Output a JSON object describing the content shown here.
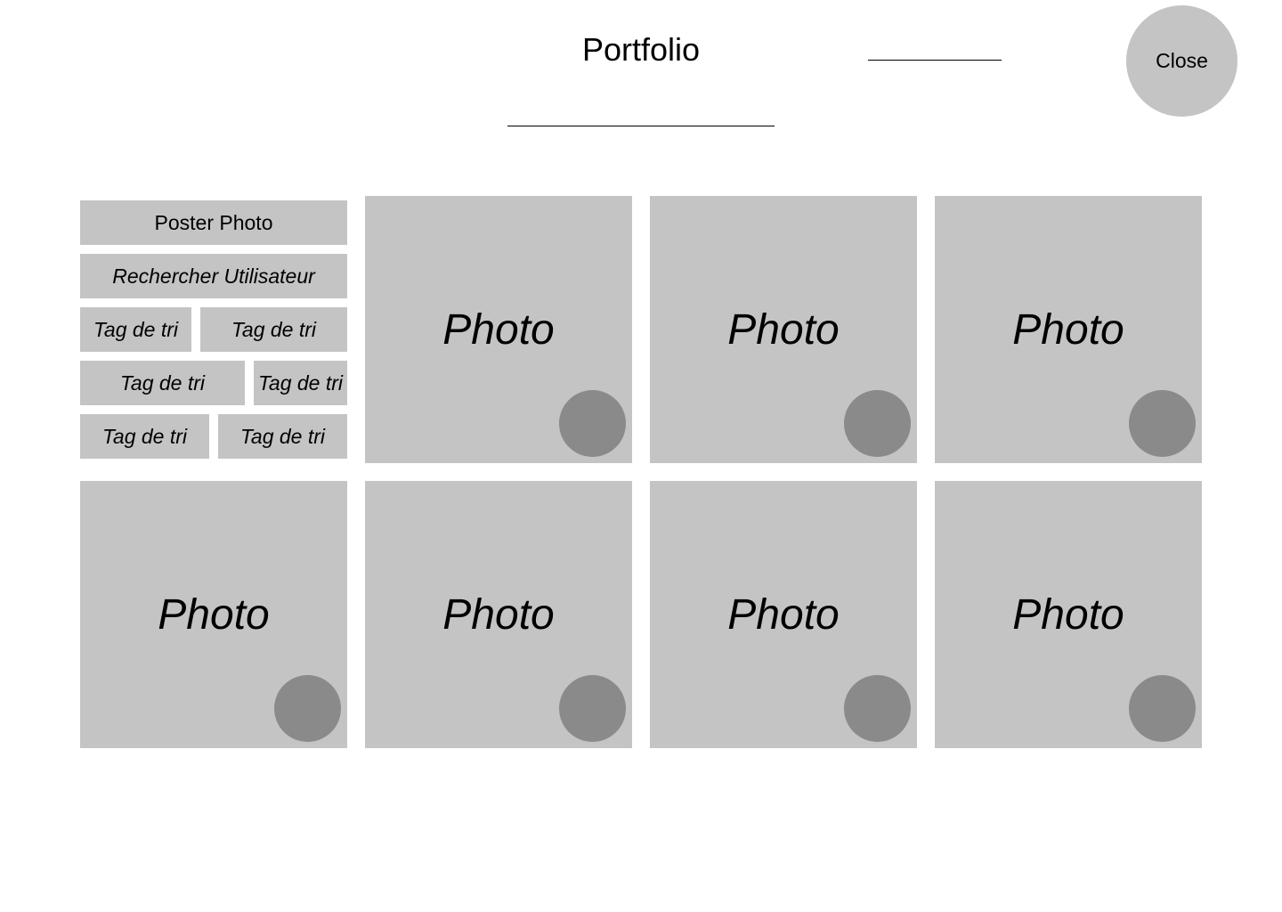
{
  "header": {
    "title": "Portfolio",
    "close_label": "Close"
  },
  "sidebar": {
    "post_photo_label": "Poster Photo",
    "search_user_label": "Rechercher Utilisateur",
    "tags": [
      {
        "label": "Tag de tri"
      },
      {
        "label": "Tag de tri"
      },
      {
        "label": "Tag de tri"
      },
      {
        "label": "Tag de tri"
      },
      {
        "label": "Tag de tri"
      },
      {
        "label": "Tag de tri"
      }
    ]
  },
  "photos": [
    {
      "label": "Photo"
    },
    {
      "label": "Photo"
    },
    {
      "label": "Photo"
    },
    {
      "label": "Photo"
    },
    {
      "label": "Photo"
    },
    {
      "label": "Photo"
    },
    {
      "label": "Photo"
    }
  ],
  "colors": {
    "card_fill": "#c4c4c4",
    "circle_fill": "#8a8a8a"
  }
}
